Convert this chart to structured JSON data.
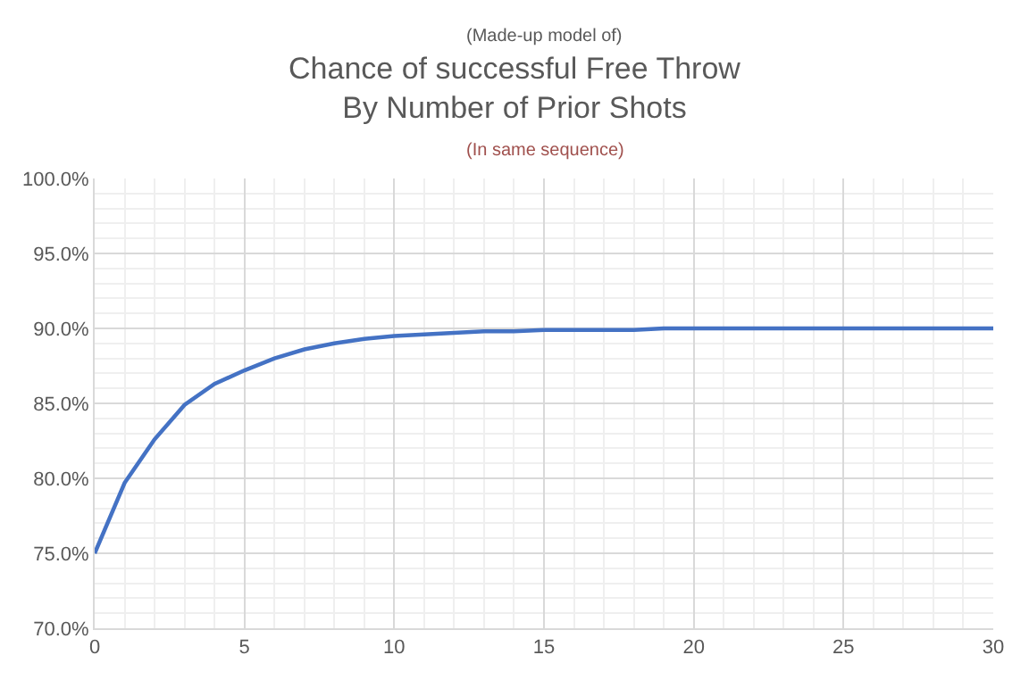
{
  "chart_data": {
    "type": "line",
    "title": "Chance of successful Free Throw\nBy Number of Prior Shots",
    "annotations": [
      "(Made-up model of)",
      "(In same sequence)"
    ],
    "x": [
      0,
      1,
      2,
      3,
      4,
      5,
      6,
      7,
      8,
      9,
      10,
      11,
      12,
      13,
      14,
      15,
      16,
      17,
      18,
      19,
      20,
      21,
      22,
      23,
      24,
      25,
      26,
      27,
      28,
      29,
      30
    ],
    "series": [
      {
        "color": "#4472c4",
        "values": [
          75.0,
          79.7,
          82.6,
          84.9,
          86.3,
          87.2,
          88.0,
          88.6,
          89.0,
          89.3,
          89.5,
          89.6,
          89.7,
          89.8,
          89.8,
          89.9,
          89.9,
          89.9,
          89.9,
          90.0,
          90.0,
          90.0,
          90.0,
          90.0,
          90.0,
          90.0,
          90.0,
          90.0,
          90.0,
          90.0,
          90.0
        ]
      }
    ],
    "xlim": [
      0,
      30
    ],
    "xticks": [
      0,
      5,
      10,
      15,
      20,
      25,
      30
    ],
    "ylim": [
      70,
      100
    ],
    "yticks": [
      {
        "value": 70,
        "label": "70.0%"
      },
      {
        "value": 75,
        "label": "75.0%"
      },
      {
        "value": 80,
        "label": "80.0%"
      },
      {
        "value": 85,
        "label": "85.0%"
      },
      {
        "value": 90,
        "label": "90.0%"
      },
      {
        "value": 95,
        "label": "95.0%"
      },
      {
        "value": 100,
        "label": "100.0%"
      }
    ],
    "grid": true,
    "marker": "none",
    "line_style": "solid"
  }
}
